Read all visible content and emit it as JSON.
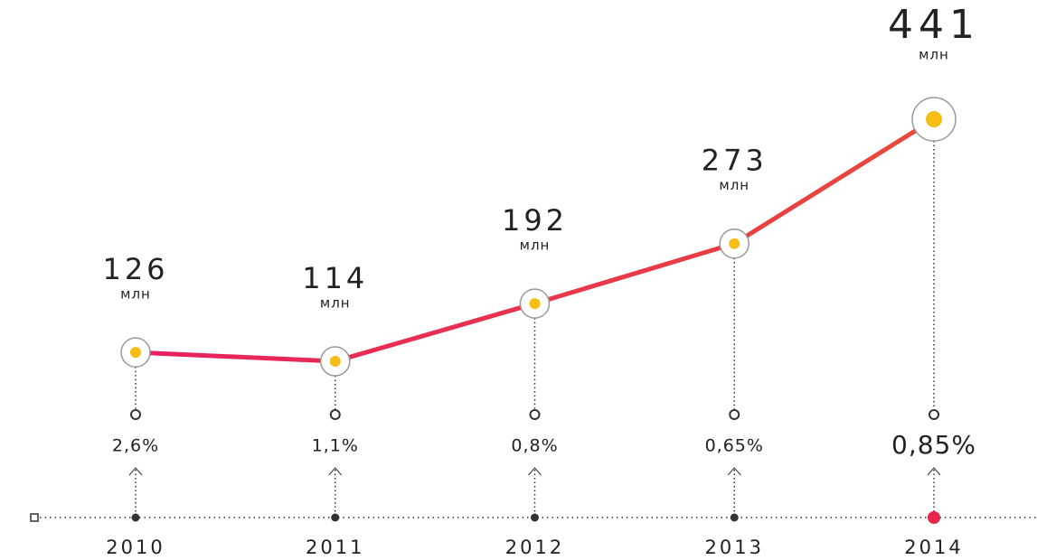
{
  "chart_data": {
    "type": "line",
    "categories": [
      "2010",
      "2011",
      "2012",
      "2013",
      "2014"
    ],
    "values": [
      126,
      114,
      192,
      273,
      441
    ],
    "unit": "млн",
    "rates": [
      2.6,
      1.1,
      0.8,
      0.65,
      0.85
    ],
    "rate_labels": [
      "2,6%",
      "1,1%",
      "0,8%",
      "0,65%",
      "0,85%"
    ],
    "highlight": "2014",
    "color": "#e8245c",
    "highlight_color": "#e8264a",
    "marker_color": "#f6bd15"
  }
}
